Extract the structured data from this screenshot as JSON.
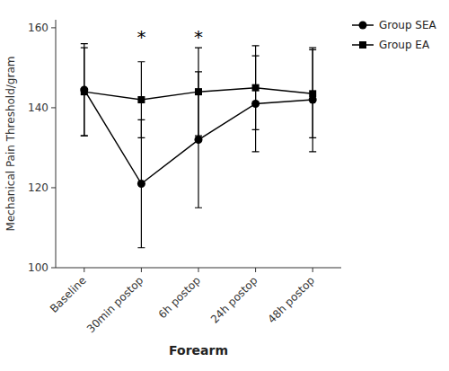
{
  "chart_data": {
    "type": "line",
    "x_label": "Forearm",
    "y_label": "Mechanical Pain Threshold/gram",
    "categories": [
      "Baseline",
      "30min postop",
      "6h postop",
      "24h postop",
      "48h postop"
    ],
    "series": [
      {
        "name": "Group SEA",
        "color": "#000000",
        "marker": "circle",
        "line_style": "solid",
        "values": [
          144.5,
          121.0,
          132.0,
          141.0,
          142.0
        ],
        "errors": [
          11.5,
          16.0,
          17.0,
          12.0,
          13.0
        ]
      },
      {
        "name": "Group EA",
        "color": "#000000",
        "marker": "square",
        "line_style": "solid",
        "values": [
          144.0,
          142.0,
          144.0,
          145.0,
          143.5
        ],
        "errors": [
          11.0,
          9.5,
          11.0,
          10.5,
          11.0
        ]
      }
    ],
    "annotations": [
      {
        "text": "*",
        "category": "30min postop",
        "y": 158.5
      },
      {
        "text": "*",
        "category": "6h postop",
        "y": 158.5
      }
    ],
    "ylim": [
      100,
      162
    ],
    "yticks": [
      100,
      120,
      140,
      160
    ],
    "grid": false,
    "legend": "right"
  }
}
